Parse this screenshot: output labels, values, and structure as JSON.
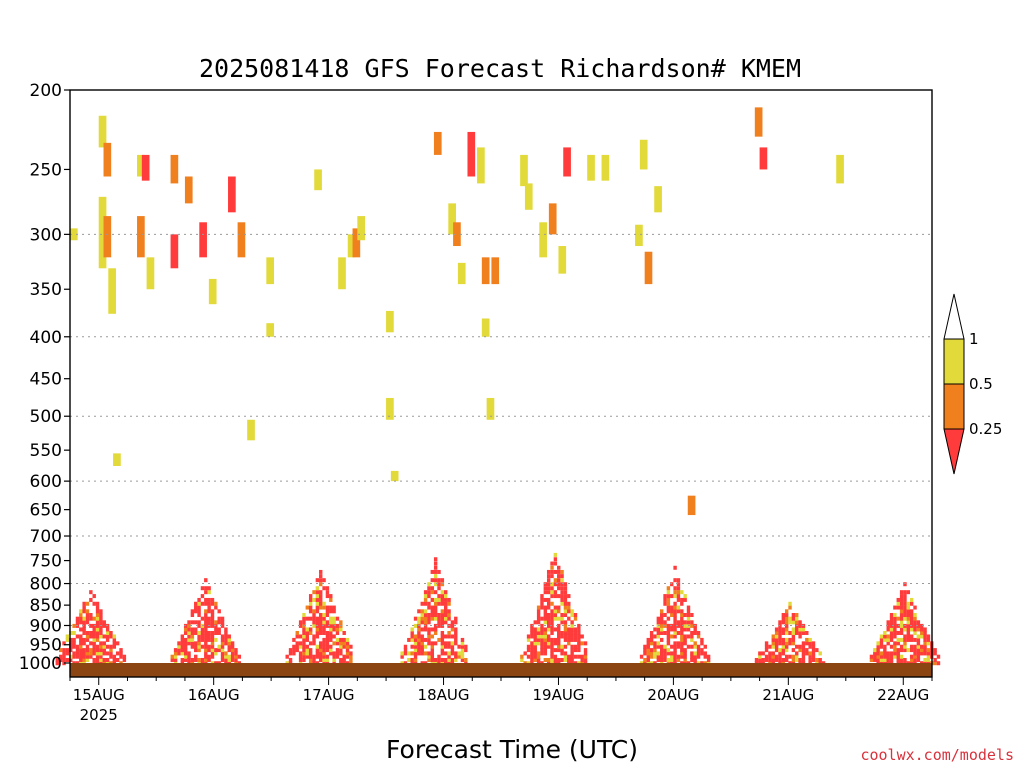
{
  "title": "2025081418 GFS Forecast Richardson# KMEM",
  "x_axis_label": "Forecast Time (UTC)",
  "credit": "coolwx.com/models",
  "colors": {
    "ri_lt_0_25": "#ff3b3b",
    "ri_0_25_0_5": "#f07f1e",
    "ri_0_5_1": "#e2d93a",
    "ground": "#8b4513",
    "credit": "#d8323c"
  },
  "chart_data": {
    "type": "heatmap",
    "variable": "Richardson number",
    "x_ticks": [
      {
        "label": "15AUG",
        "sub": "2025",
        "hours": 6
      },
      {
        "label": "16AUG",
        "hours": 30
      },
      {
        "label": "17AUG",
        "hours": 54
      },
      {
        "label": "18AUG",
        "hours": 78
      },
      {
        "label": "19AUG",
        "hours": 102
      },
      {
        "label": "20AUG",
        "hours": 126
      },
      {
        "label": "21AUG",
        "hours": 150
      },
      {
        "label": "22AUG",
        "hours": 174
      }
    ],
    "x_range_hours": [
      0,
      180
    ],
    "y_ticks": [
      200,
      250,
      300,
      350,
      400,
      450,
      500,
      550,
      600,
      650,
      700,
      750,
      800,
      850,
      900,
      950,
      1000
    ],
    "y_range_hPa": [
      200,
      1000
    ],
    "y_scale": "log-pressure",
    "gridlines_hPa": [
      300,
      400,
      500,
      600,
      700,
      800,
      900
    ],
    "legend": {
      "levels": [
        "0.25",
        "0.5",
        "1"
      ],
      "bins": [
        {
          "range": "<0.25",
          "color": "#ff3b3b"
        },
        {
          "range": "0.25-0.5",
          "color": "#f07f1e"
        },
        {
          "range": "0.5-1",
          "color": "#e2d93a"
        }
      ]
    },
    "cells": [
      [
        0,
        295,
        305,
        1
      ],
      [
        6,
        270,
        330,
        1
      ],
      [
        6,
        215,
        235,
        1
      ],
      [
        7,
        232,
        255,
        2
      ],
      [
        7,
        285,
        320,
        2
      ],
      [
        8,
        330,
        375,
        1
      ],
      [
        9,
        555,
        575,
        1
      ],
      [
        14,
        240,
        255,
        1
      ],
      [
        14,
        285,
        320,
        2
      ],
      [
        15,
        240,
        258,
        3
      ],
      [
        16,
        320,
        350,
        1
      ],
      [
        21,
        240,
        260,
        2
      ],
      [
        21,
        300,
        330,
        3
      ],
      [
        24,
        255,
        275,
        2
      ],
      [
        27,
        290,
        320,
        3
      ],
      [
        29,
        340,
        365,
        1
      ],
      [
        33,
        255,
        282,
        3
      ],
      [
        35,
        290,
        320,
        2
      ],
      [
        37,
        505,
        535,
        1
      ],
      [
        41,
        320,
        345,
        1
      ],
      [
        41,
        385,
        400,
        1
      ],
      [
        51,
        250,
        265,
        1
      ],
      [
        56,
        320,
        350,
        1
      ],
      [
        58,
        300,
        320,
        1
      ],
      [
        59,
        295,
        320,
        2
      ],
      [
        60,
        285,
        305,
        1
      ],
      [
        66,
        372,
        395,
        1
      ],
      [
        66,
        475,
        505,
        1
      ],
      [
        67,
        583,
        600,
        1
      ],
      [
        76,
        225,
        240,
        2
      ],
      [
        79,
        275,
        300,
        1
      ],
      [
        80,
        290,
        310,
        2
      ],
      [
        81,
        325,
        345,
        1
      ],
      [
        83,
        225,
        255,
        3
      ],
      [
        85,
        235,
        260,
        1
      ],
      [
        86,
        320,
        345,
        2
      ],
      [
        86,
        380,
        400,
        1
      ],
      [
        87,
        475,
        505,
        1
      ],
      [
        88,
        320,
        345,
        2
      ],
      [
        94,
        240,
        262,
        1
      ],
      [
        95,
        260,
        280,
        1
      ],
      [
        98,
        290,
        320,
        1
      ],
      [
        100,
        275,
        300,
        2
      ],
      [
        102,
        310,
        335,
        1
      ],
      [
        103,
        235,
        255,
        3
      ],
      [
        108,
        240,
        258,
        1
      ],
      [
        111,
        240,
        258,
        1
      ],
      [
        118,
        292,
        310,
        1
      ],
      [
        119,
        230,
        250,
        1
      ],
      [
        120,
        315,
        345,
        2
      ],
      [
        122,
        262,
        282,
        1
      ],
      [
        129,
        625,
        660,
        2
      ],
      [
        143,
        210,
        228,
        2
      ],
      [
        144,
        235,
        250,
        3
      ],
      [
        160,
        240,
        260,
        1
      ]
    ],
    "surface_mixing": [
      {
        "day": "15AUG",
        "center_hours": 4,
        "top_hPa": 800
      },
      {
        "day": "16AUG",
        "center_hours": 28,
        "top_hPa": 780
      },
      {
        "day": "17AUG",
        "center_hours": 52,
        "top_hPa": 760
      },
      {
        "day": "18AUG",
        "center_hours": 76,
        "top_hPa": 740
      },
      {
        "day": "19AUG",
        "center_hours": 101,
        "top_hPa": 720
      },
      {
        "day": "20AUG",
        "center_hours": 126,
        "top_hPa": 760
      },
      {
        "day": "21AUG",
        "center_hours": 150,
        "top_hPa": 840
      },
      {
        "day": "22AUG",
        "center_hours": 174,
        "top_hPa": 790
      }
    ]
  }
}
